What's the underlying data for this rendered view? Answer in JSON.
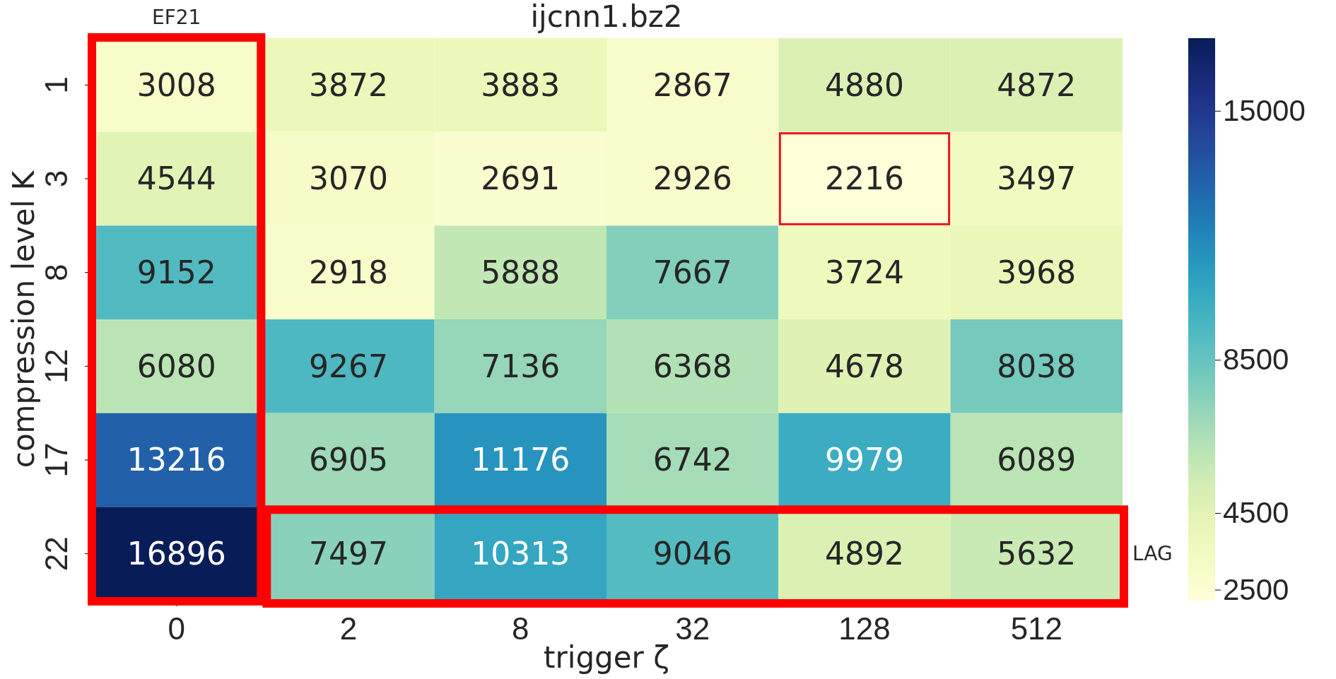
{
  "chart_data": {
    "type": "heatmap",
    "title": "ijcnn1.bz2",
    "xlabel": "trigger ζ",
    "ylabel": "compression level K",
    "categories": [
      "0",
      "2",
      "8",
      "32",
      "128",
      "512"
    ],
    "y_categories": [
      "1",
      "3",
      "8",
      "12",
      "17",
      "22"
    ],
    "cells": [
      [
        3008,
        3872,
        3883,
        2867,
        4880,
        4872
      ],
      [
        4544,
        3070,
        2691,
        2926,
        2216,
        3497
      ],
      [
        9152,
        2918,
        5888,
        7667,
        3724,
        3968
      ],
      [
        6080,
        9267,
        7136,
        6368,
        4678,
        8038
      ],
      [
        13216,
        6905,
        11176,
        6742,
        9979,
        6089
      ],
      [
        16896,
        7497,
        10313,
        9046,
        4892,
        5632
      ]
    ],
    "data_labels": true,
    "clim": [
      2216,
      16896
    ],
    "cticks": [
      2500,
      4500,
      8500,
      15000
    ],
    "annotations": [
      "EF21",
      "LAG"
    ]
  }
}
